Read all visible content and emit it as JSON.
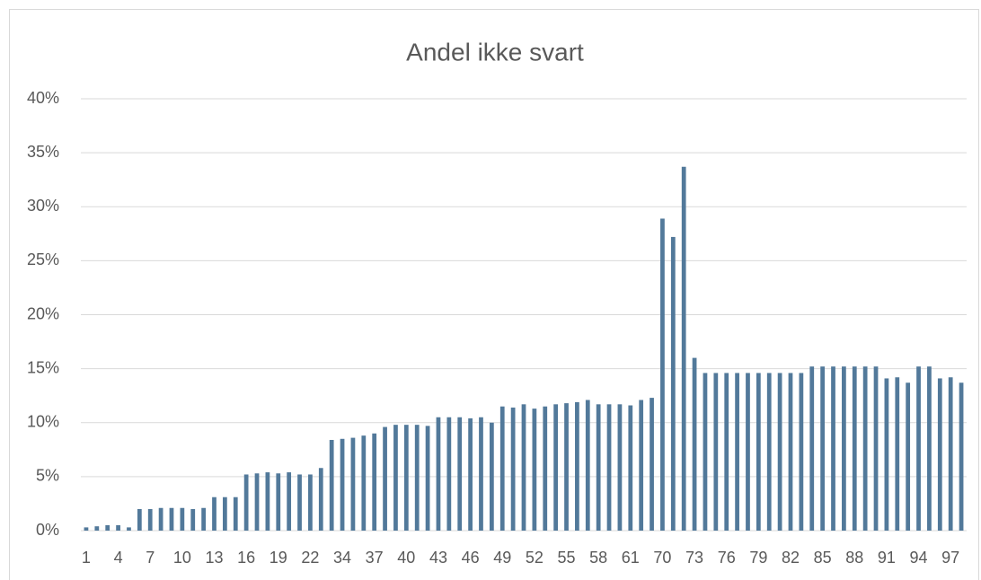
{
  "chart_data": {
    "type": "bar",
    "title": "Andel ikke svart",
    "categories": [
      "1",
      null,
      null,
      "4",
      null,
      null,
      "7",
      null,
      null,
      "10",
      null,
      null,
      "13",
      null,
      null,
      "16",
      null,
      null,
      "19",
      null,
      null,
      "22",
      null,
      null,
      "34",
      null,
      null,
      "37",
      null,
      null,
      "40",
      null,
      null,
      "43",
      null,
      null,
      "46",
      null,
      null,
      "49",
      null,
      null,
      "52",
      null,
      null,
      "55",
      null,
      null,
      "58",
      null,
      null,
      "61",
      null,
      null,
      "70",
      null,
      null,
      "73",
      null,
      null,
      "76",
      null,
      null,
      "79",
      null,
      null,
      "82",
      null,
      null,
      "85",
      null,
      null,
      "88",
      null,
      null,
      "91",
      null,
      null,
      "94",
      null,
      null,
      "97",
      null
    ],
    "values": [
      0.3,
      0.4,
      0.5,
      0.5,
      0.3,
      2.0,
      2.0,
      2.1,
      2.1,
      2.1,
      2.0,
      2.1,
      3.1,
      3.1,
      3.1,
      5.2,
      5.3,
      5.4,
      5.3,
      5.4,
      5.2,
      5.2,
      5.8,
      8.4,
      8.5,
      8.6,
      8.8,
      9.0,
      9.6,
      9.8,
      9.8,
      9.8,
      9.7,
      10.5,
      10.5,
      10.5,
      10.4,
      10.5,
      10.0,
      11.5,
      11.4,
      11.7,
      11.3,
      11.5,
      11.7,
      11.8,
      11.9,
      12.1,
      11.7,
      11.7,
      11.7,
      11.6,
      12.1,
      12.3,
      28.9,
      27.2,
      33.7,
      16.0,
      14.6,
      14.6,
      14.6,
      14.6,
      14.6,
      14.6,
      14.6,
      14.6,
      14.6,
      14.6,
      15.2,
      15.2,
      15.2,
      15.2,
      15.2,
      15.2,
      15.2,
      14.1,
      14.2,
      13.7,
      15.2,
      15.2,
      14.1,
      14.2,
      13.7
    ],
    "color": "#52799a",
    "ylim": [
      0,
      40
    ],
    "yticks": [
      {
        "value": 0,
        "label": "0%"
      },
      {
        "value": 5,
        "label": "5%"
      },
      {
        "value": 10,
        "label": "10%"
      },
      {
        "value": 15,
        "label": "15%"
      },
      {
        "value": 20,
        "label": "20%"
      },
      {
        "value": 25,
        "label": "25%"
      },
      {
        "value": 30,
        "label": "30%"
      },
      {
        "value": 35,
        "label": "35%"
      },
      {
        "value": 40,
        "label": "40%"
      }
    ],
    "grid": true
  }
}
